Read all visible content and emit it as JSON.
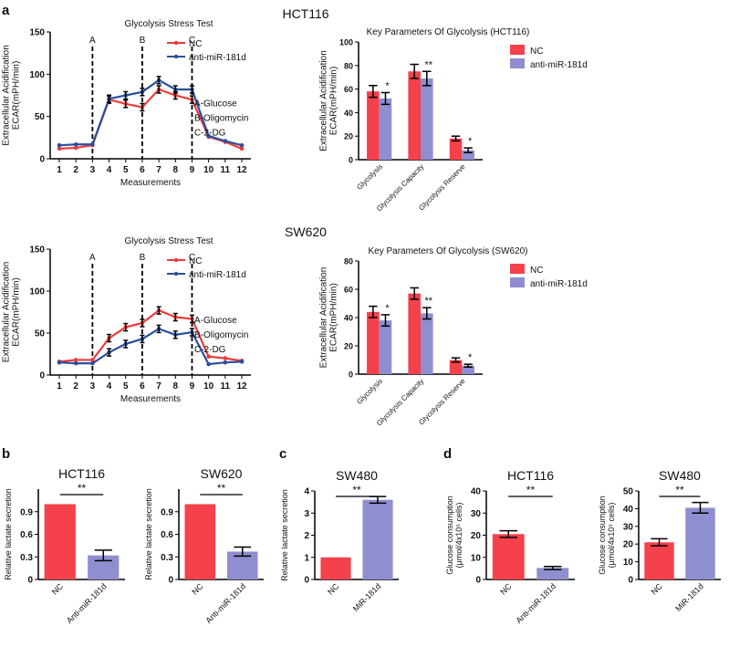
{
  "panel_labels": {
    "a": "a",
    "b": "b",
    "c": "c",
    "d": "d"
  },
  "section_titles": {
    "hct116": "HCT116",
    "sw620": "SW620"
  },
  "colors": {
    "nc": "#f5414b",
    "anti": "#8e8ed0",
    "line_nc": "#ee3b3b",
    "line_anti": "#2a4f9c"
  },
  "chart_data": [
    {
      "id": "lineHCT",
      "type": "line",
      "title": "Glycolysis Stress Test",
      "xlabel": "Measurements",
      "ylabel_lines": [
        "Extracellular Acidification",
        "ECAR(mPH/min)"
      ],
      "x": [
        1,
        2,
        3,
        4,
        5,
        6,
        7,
        8,
        9,
        10,
        11,
        12
      ],
      "xticks": [
        "1",
        "2",
        "3",
        "4",
        "5",
        "6",
        "7",
        "8",
        "9",
        "10",
        "11",
        "12"
      ],
      "ylim": [
        0,
        150
      ],
      "yticks": [
        0,
        50,
        100,
        150
      ],
      "series": [
        {
          "name": "NC",
          "values": [
            12,
            13,
            16,
            70,
            65,
            61,
            82,
            75,
            70,
            26,
            20,
            12
          ]
        },
        {
          "name": "anti-miR-181d",
          "values": [
            16,
            17,
            17,
            71,
            75,
            79,
            93,
            82,
            82,
            27,
            21,
            16
          ]
        }
      ],
      "markers": [
        {
          "x": 3,
          "label": "A"
        },
        {
          "x": 6,
          "label": "B"
        },
        {
          "x": 9,
          "label": "C"
        }
      ],
      "annotations": [
        "A-Glucose",
        "B-Oligomycin",
        "C-2-DG"
      ],
      "legend": "top-right"
    },
    {
      "id": "barHCT",
      "type": "bar",
      "title": "Key Parameters Of Glycolysis  (HCT116)",
      "ylabel_lines": [
        "Extracellular Acidification",
        "ECAR(mPH/min)"
      ],
      "categories": [
        "Glycolysis",
        "Glycolysis Capacity",
        "Glycolysis Reserve"
      ],
      "ylim": [
        0,
        100
      ],
      "yticks": [
        0,
        20,
        40,
        60,
        80,
        100
      ],
      "series": [
        {
          "name": "NC",
          "values": [
            58,
            75,
            18
          ],
          "errors": [
            5,
            6,
            2
          ]
        },
        {
          "name": "anti-miR-181d",
          "values": [
            52,
            69,
            8
          ],
          "errors": [
            5,
            6,
            2
          ]
        }
      ],
      "significance": [
        "*",
        "**",
        "*"
      ],
      "legend": "top-right"
    },
    {
      "id": "lineSW",
      "type": "line",
      "title": "Glycolysis Stress Test",
      "xlabel": "Measurements",
      "ylabel_lines": [
        "Extracellular Acidification",
        "ECAR(mPH/min)"
      ],
      "x": [
        1,
        2,
        3,
        4,
        5,
        6,
        7,
        8,
        9,
        10,
        11,
        12
      ],
      "xticks": [
        "1",
        "2",
        "3",
        "4",
        "5",
        "6",
        "7",
        "8",
        "9",
        "10",
        "11",
        "12"
      ],
      "ylim": [
        0,
        150
      ],
      "yticks": [
        0,
        50,
        100,
        150
      ],
      "series": [
        {
          "name": "NC",
          "values": [
            16,
            18,
            18,
            44,
            57,
            62,
            77,
            69,
            67,
            22,
            20,
            17
          ]
        },
        {
          "name": "anti-miR-181d",
          "values": [
            15,
            14,
            14,
            27,
            37,
            43,
            55,
            48,
            51,
            13,
            15,
            16
          ]
        }
      ],
      "markers": [
        {
          "x": 3,
          "label": "A"
        },
        {
          "x": 6,
          "label": "B"
        },
        {
          "x": 9,
          "label": "C"
        }
      ],
      "annotations": [
        "A-Glucose",
        "B-Oligomycin",
        "C-2-DG"
      ],
      "legend": "top-right"
    },
    {
      "id": "barSW",
      "type": "bar",
      "title": "Key Parameters Of Glycolysis  (SW620)",
      "ylabel_lines": [
        "Extracellular Acidification",
        "ECAR(mPH/min)"
      ],
      "categories": [
        "Glycolysis",
        "Glycolysis Capacity",
        "Glycolysis Reserve"
      ],
      "ylim": [
        0,
        80
      ],
      "yticks": [
        0,
        20,
        40,
        60,
        80
      ],
      "series": [
        {
          "name": "NC",
          "values": [
            44,
            57,
            10
          ],
          "errors": [
            4,
            4,
            1.5
          ]
        },
        {
          "name": "anti-miR-181d",
          "values": [
            38,
            43,
            6
          ],
          "errors": [
            4,
            4,
            1
          ]
        }
      ],
      "significance": [
        "*",
        "**",
        "*"
      ],
      "legend": "top-right"
    },
    {
      "id": "bHCT",
      "type": "bar",
      "title": "HCT116",
      "ylabel": "Relative lactate secretion",
      "categories": [
        "NC",
        "Anti-miR-181d"
      ],
      "values": [
        1.0,
        0.32
      ],
      "errors": [
        0,
        0.07
      ],
      "ylim": [
        0,
        1.2
      ],
      "yticks": [
        0,
        0.3,
        0.6,
        0.9
      ],
      "ytick_labels": [
        "0",
        "0.3",
        "0.6",
        "0.9"
      ],
      "significance": "**"
    },
    {
      "id": "bSW",
      "type": "bar",
      "title": "SW620",
      "ylabel": "Relative lactate secretion",
      "categories": [
        "NC",
        "Anti-miR-181d"
      ],
      "values": [
        1.0,
        0.37
      ],
      "errors": [
        0,
        0.06
      ],
      "ylim": [
        0,
        1.2
      ],
      "yticks": [
        0,
        0.3,
        0.6,
        0.9
      ],
      "ytick_labels": [
        "0",
        "0.3",
        "0.6",
        "0.9"
      ],
      "significance": "**"
    },
    {
      "id": "cSW480",
      "type": "bar",
      "title": "SW480",
      "ylabel": "Relative lactate secretion",
      "categories": [
        "NC",
        "MiR-181d"
      ],
      "values": [
        1.0,
        3.6
      ],
      "errors": [
        0,
        0.15
      ],
      "ylim": [
        0,
        4
      ],
      "yticks": [
        0,
        1,
        2,
        3,
        4
      ],
      "ytick_labels": [
        "0",
        "1",
        "2",
        "3",
        "4"
      ],
      "significance": "**"
    },
    {
      "id": "dHCT",
      "type": "bar",
      "title": "HCT116",
      "ylabel_lines": [
        "Glucose consumption",
        "(μmol/4x10⁵ cells)"
      ],
      "categories": [
        "NC",
        "Anti-miR-181d"
      ],
      "values": [
        20.5,
        5.2
      ],
      "errors": [
        1.5,
        0.7
      ],
      "ylim": [
        0,
        40
      ],
      "yticks": [
        0,
        10,
        20,
        30,
        40
      ],
      "ytick_labels": [
        "0",
        "10",
        "20",
        "30",
        "40"
      ],
      "significance": "**"
    },
    {
      "id": "dSW480",
      "type": "bar",
      "title": "SW480",
      "ylabel_lines": [
        "Glucose consumption",
        "(μmol/4x10⁵ cells)"
      ],
      "categories": [
        "NC",
        "MiR-181d"
      ],
      "values": [
        21,
        40.5
      ],
      "errors": [
        2,
        3
      ],
      "ylim": [
        0,
        50
      ],
      "yticks": [
        0,
        10,
        20,
        30,
        40,
        50
      ],
      "ytick_labels": [
        "0",
        "10",
        "20",
        "30",
        "40",
        "50"
      ],
      "significance": "**"
    }
  ]
}
